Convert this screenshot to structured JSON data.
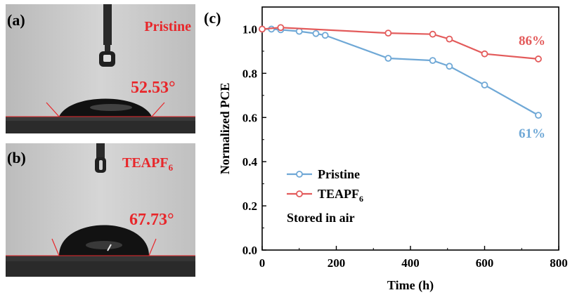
{
  "panel_a": {
    "letter": "(a)",
    "title": "Pristine",
    "angle_label": "52.53°"
  },
  "panel_b": {
    "letter": "(b)",
    "title_main": "TEAPF",
    "title_sub": "6",
    "angle_label": "67.73°"
  },
  "panel_c": {
    "letter": "(c)"
  },
  "colors": {
    "pristine": "#6fa8d6",
    "teapf6": "#e35b5b",
    "annotation_red": "#e8262a"
  },
  "chart_data": {
    "type": "line",
    "xlabel": "Time (h)",
    "ylabel": "Normalized PCE",
    "xlim": [
      0,
      800
    ],
    "ylim": [
      0,
      1.1
    ],
    "xticks": [
      0,
      200,
      400,
      600,
      800
    ],
    "xtick_labels": [
      "0",
      "200",
      "400",
      "600",
      "800"
    ],
    "yticks": [
      0.0,
      0.2,
      0.4,
      0.6,
      0.8,
      1.0
    ],
    "ytick_labels": [
      "0.0",
      "0.2",
      "0.4",
      "0.6",
      "0.8",
      "1.0"
    ],
    "grid": false,
    "legend_position": "bottom-left",
    "legend_note": "Stored in air",
    "series": [
      {
        "name": "Pristine",
        "label_main": "Pristine",
        "label_sub": "",
        "color_key": "pristine",
        "x": [
          0,
          25,
          50,
          100,
          145,
          170,
          340,
          460,
          505,
          600,
          745
        ],
        "y": [
          1.0,
          1.0,
          0.997,
          0.99,
          0.98,
          0.972,
          0.868,
          0.858,
          0.832,
          0.747,
          0.61
        ],
        "end_label": "61%"
      },
      {
        "name": "TEAPF6",
        "label_main": "TEAPF",
        "label_sub": "6",
        "color_key": "teapf6",
        "x": [
          0,
          50,
          340,
          460,
          505,
          600,
          745
        ],
        "y": [
          1.0,
          1.007,
          0.982,
          0.977,
          0.955,
          0.888,
          0.865
        ],
        "end_label": "86%"
      }
    ]
  }
}
